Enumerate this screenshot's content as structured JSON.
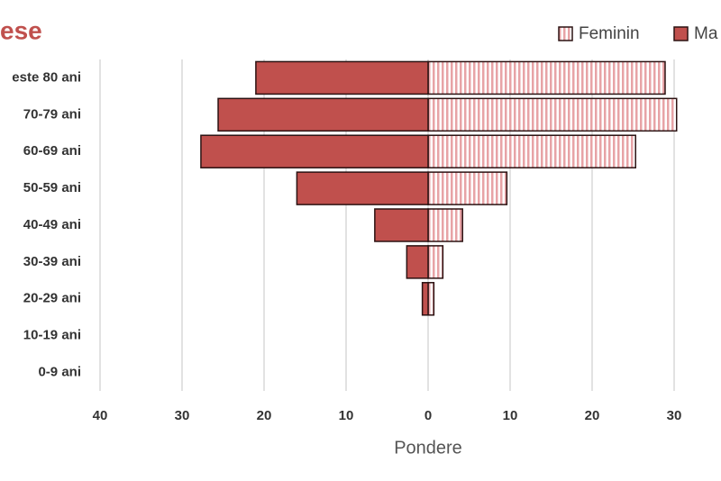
{
  "chart_data": {
    "type": "pyramid",
    "title": "ese",
    "x_label": "Pondere",
    "categories": [
      "este 80 ani",
      "70-79 ani",
      "60-69 ani",
      "50-59 ani",
      "40-49 ani",
      "30-39 ani",
      "20-29 ani",
      "10-19 ani",
      "0-9 ani"
    ],
    "series": [
      {
        "name": "Feminin",
        "color": "#e7a3a6",
        "pattern": "stripes",
        "values": [
          28.9,
          30.3,
          25.3,
          9.6,
          4.2,
          1.8,
          0.7,
          0,
          0
        ]
      },
      {
        "name": "Ma",
        "color": "#c0504d",
        "values": [
          -21,
          -25.6,
          -27.7,
          -16,
          -6.5,
          -2.6,
          -0.7,
          0,
          0
        ]
      }
    ],
    "xlim": [
      -40,
      30
    ],
    "xticks": [
      {
        "value": -40,
        "label": "40"
      },
      {
        "value": -30,
        "label": "30"
      },
      {
        "value": -20,
        "label": "20"
      },
      {
        "value": -10,
        "label": "10"
      },
      0,
      10,
      20,
      30
    ],
    "grid": true
  }
}
